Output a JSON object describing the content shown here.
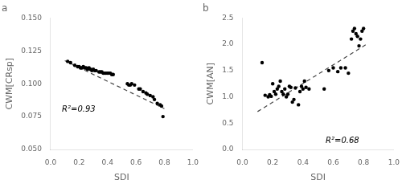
{
  "chart_data": [
    {
      "type": "scatter",
      "title": "a",
      "xlabel": "SDI",
      "ylabel": "CWM[CRsp]",
      "xlim": [
        0.0,
        1.0
      ],
      "ylim": [
        0.05,
        0.15
      ],
      "xticks": [
        {
          "value": 0.0,
          "label": "0.0"
        },
        0.2,
        0.4,
        0.6,
        0.8,
        {
          "value": 1.0,
          "label": "1.0"
        }
      ],
      "yticks": [
        {
          "value": 0.05,
          "label": "0.050"
        },
        0.075,
        {
          "value": 0.1,
          "label": "0.100"
        },
        0.125,
        {
          "value": 0.15,
          "label": "0.150"
        }
      ],
      "grid": false,
      "annotations": [
        {
          "text": "R²=0.93",
          "x": 0.08,
          "y": 0.077
        }
      ],
      "series": [
        {
          "type": "scatter",
          "color": "#000000",
          "marker": "circle",
          "x": [
            0.12,
            0.14,
            0.17,
            0.19,
            0.2,
            0.21,
            0.22,
            0.23,
            0.24,
            0.25,
            0.26,
            0.27,
            0.28,
            0.29,
            0.3,
            0.31,
            0.32,
            0.34,
            0.35,
            0.36,
            0.37,
            0.38,
            0.39,
            0.4,
            0.41,
            0.42,
            0.43,
            0.44,
            0.54,
            0.55,
            0.56,
            0.57,
            0.59,
            0.62,
            0.63,
            0.65,
            0.67,
            0.68,
            0.7,
            0.72,
            0.73,
            0.75,
            0.77,
            0.78,
            0.79
          ],
          "values": [
            0.117,
            0.116,
            0.114,
            0.113,
            0.113,
            0.112,
            0.112,
            0.113,
            0.112,
            0.112,
            0.111,
            0.112,
            0.111,
            0.11,
            0.111,
            0.11,
            0.11,
            0.109,
            0.109,
            0.109,
            0.108,
            0.108,
            0.108,
            0.108,
            0.108,
            0.108,
            0.107,
            0.107,
            0.1,
            0.099,
            0.099,
            0.1,
            0.099,
            0.096,
            0.096,
            0.094,
            0.093,
            0.092,
            0.091,
            0.09,
            0.088,
            0.085,
            0.084,
            0.083,
            0.075
          ]
        },
        {
          "type": "line",
          "color": "#444444",
          "line_style": "dashed",
          "x": [
            0.1,
            0.8
          ],
          "values": [
            0.1175,
            0.081
          ]
        }
      ]
    },
    {
      "type": "scatter",
      "title": "b",
      "xlabel": "SDI",
      "ylabel": "CWM[AN]",
      "xlim": [
        0.0,
        1.0
      ],
      "ylim": [
        0.0,
        2.5
      ],
      "xticks": [
        {
          "value": 0.0,
          "label": "0.0"
        },
        0.2,
        0.4,
        0.6,
        0.8,
        {
          "value": 1.0,
          "label": "1.0"
        }
      ],
      "yticks": [
        {
          "value": 0.0,
          "label": "0.0"
        },
        0.5,
        {
          "value": 1.0,
          "label": "1.0"
        },
        1.5,
        {
          "value": 2.0,
          "label": "2.0"
        },
        2.5
      ],
      "grid": false,
      "annotations": [
        {
          "text": "R²=0.68",
          "x": 0.55,
          "y": 0.09
        }
      ],
      "series": [
        {
          "type": "scatter",
          "color": "#000000",
          "marker": "circle",
          "x": [
            0.13,
            0.15,
            0.17,
            0.18,
            0.19,
            0.2,
            0.21,
            0.22,
            0.23,
            0.24,
            0.25,
            0.26,
            0.27,
            0.28,
            0.29,
            0.3,
            0.31,
            0.32,
            0.33,
            0.34,
            0.35,
            0.37,
            0.38,
            0.39,
            0.4,
            0.41,
            0.42,
            0.44,
            0.54,
            0.57,
            0.6,
            0.63,
            0.65,
            0.68,
            0.7,
            0.72,
            0.73,
            0.74,
            0.75,
            0.76,
            0.77,
            0.78,
            0.79,
            0.8
          ],
          "values": [
            1.65,
            1.03,
            1.0,
            1.04,
            1.01,
            1.25,
            1.1,
            1.05,
            1.15,
            1.2,
            1.3,
            1.1,
            1.05,
            1.15,
            1.0,
            1.05,
            1.2,
            1.18,
            0.9,
            0.95,
            1.17,
            0.85,
            1.1,
            1.2,
            1.15,
            1.3,
            1.18,
            1.15,
            1.15,
            1.5,
            1.55,
            1.48,
            1.55,
            1.55,
            1.45,
            2.1,
            2.25,
            2.3,
            2.2,
            2.15,
            1.97,
            2.1,
            2.25,
            2.3
          ]
        },
        {
          "type": "line",
          "color": "#444444",
          "line_style": "dashed",
          "x": [
            0.1,
            0.82
          ],
          "values": [
            0.72,
            2.0
          ]
        }
      ]
    }
  ]
}
